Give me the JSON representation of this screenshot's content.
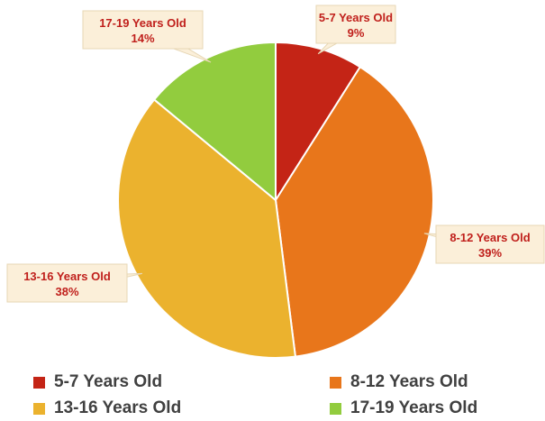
{
  "chart_data": {
    "type": "pie",
    "title": "",
    "slices": [
      {
        "label": "5-7 Years Old",
        "value": 9,
        "pct_label": "9%",
        "color": "#c42416"
      },
      {
        "label": "8-12 Years Old",
        "value": 39,
        "pct_label": "39%",
        "color": "#e8761b"
      },
      {
        "label": "13-16 Years Old",
        "value": 38,
        "pct_label": "38%",
        "color": "#ebb22e"
      },
      {
        "label": "17-19 Years Old",
        "value": 14,
        "pct_label": "14%",
        "color": "#92cc3e"
      }
    ],
    "legend_placement": "bottom",
    "data_label_style": "callout",
    "start_angle": "12 o'clock, clockwise"
  }
}
